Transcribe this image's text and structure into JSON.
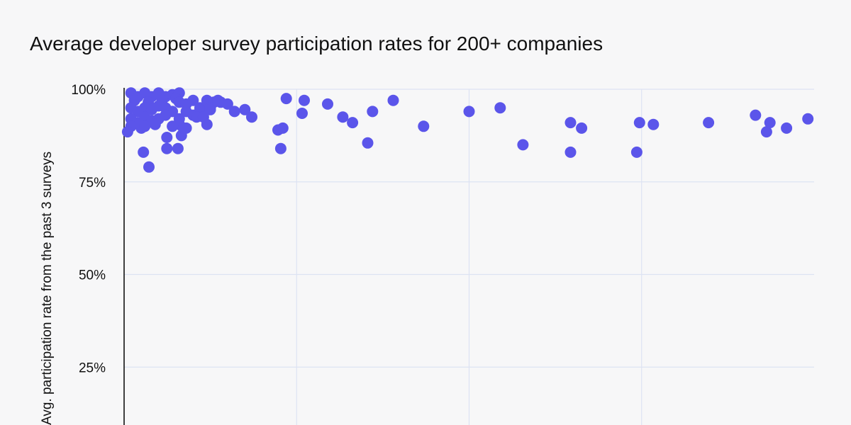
{
  "chart_data": {
    "type": "scatter",
    "title": "Average developer survey participation rates for 200+ companies",
    "ylabel": "Avg. participation rate from the past 3 surveys",
    "xlabel": "",
    "xlim": [
      0,
      100
    ],
    "ylim": [
      0,
      100
    ],
    "yticks": [
      25,
      50,
      75,
      100
    ],
    "ytick_labels": [
      "25%",
      "50%",
      "75%",
      "100%"
    ],
    "grid": true,
    "color": "#5b55ea",
    "points": [
      [
        1,
        99
      ],
      [
        2,
        98
      ],
      [
        3,
        99
      ],
      [
        4,
        98
      ],
      [
        5,
        99
      ],
      [
        6,
        98
      ],
      [
        7,
        98.5
      ],
      [
        8,
        99
      ],
      [
        1.5,
        97
      ],
      [
        3.5,
        96.5
      ],
      [
        5.5,
        97
      ],
      [
        7.5,
        97.5
      ],
      [
        1,
        95
      ],
      [
        2,
        94
      ],
      [
        3,
        95
      ],
      [
        4,
        94.5
      ],
      [
        5,
        95.5
      ],
      [
        6,
        95
      ],
      [
        7,
        94
      ],
      [
        1,
        92
      ],
      [
        2,
        91
      ],
      [
        3,
        92.5
      ],
      [
        4,
        91.5
      ],
      [
        5,
        92
      ],
      [
        6,
        93
      ],
      [
        1,
        90
      ],
      [
        2.5,
        89.5
      ],
      [
        4.5,
        90.5
      ],
      [
        0.5,
        88.5
      ],
      [
        3,
        90
      ],
      [
        8,
        96.5
      ],
      [
        9,
        96
      ],
      [
        10,
        97
      ],
      [
        9,
        94
      ],
      [
        10,
        93
      ],
      [
        11,
        95
      ],
      [
        12,
        97
      ],
      [
        11,
        94.5
      ],
      [
        10.5,
        92.5
      ],
      [
        8,
        92
      ],
      [
        8,
        90.5
      ],
      [
        7,
        90
      ],
      [
        13,
        96.5
      ],
      [
        12,
        94.5
      ],
      [
        14,
        96.5
      ],
      [
        9,
        89.5
      ],
      [
        11.5,
        92.5
      ],
      [
        12.5,
        95
      ],
      [
        15,
        96
      ],
      [
        6.2,
        87
      ],
      [
        8.3,
        87.5
      ],
      [
        8.6,
        89.5
      ],
      [
        12,
        90.5
      ],
      [
        2.8,
        83
      ],
      [
        6.2,
        84
      ],
      [
        7.8,
        84
      ],
      [
        3.6,
        79
      ],
      [
        12.5,
        94.5
      ],
      [
        13.6,
        97
      ],
      [
        16,
        94
      ],
      [
        17.5,
        94.5
      ],
      [
        18.5,
        92.5
      ],
      [
        22.3,
        89
      ],
      [
        23,
        89.5
      ],
      [
        22.7,
        84
      ],
      [
        23.5,
        97.5
      ],
      [
        25.8,
        93.5
      ],
      [
        26.1,
        97
      ],
      [
        29.5,
        96
      ],
      [
        31.7,
        92.5
      ],
      [
        33.1,
        91
      ],
      [
        35.3,
        85.5
      ],
      [
        36,
        94
      ],
      [
        39,
        97
      ],
      [
        43.4,
        90
      ],
      [
        50,
        94
      ],
      [
        54.5,
        95
      ],
      [
        57.8,
        85
      ],
      [
        64.7,
        91
      ],
      [
        64.7,
        83
      ],
      [
        66.3,
        89.5
      ],
      [
        74.3,
        83
      ],
      [
        74.7,
        91
      ],
      [
        76.7,
        90.5
      ],
      [
        84.7,
        91
      ],
      [
        91.5,
        93
      ],
      [
        93.1,
        88.5
      ],
      [
        93.6,
        91
      ],
      [
        96,
        89.5
      ],
      [
        99.1,
        92
      ]
    ]
  }
}
